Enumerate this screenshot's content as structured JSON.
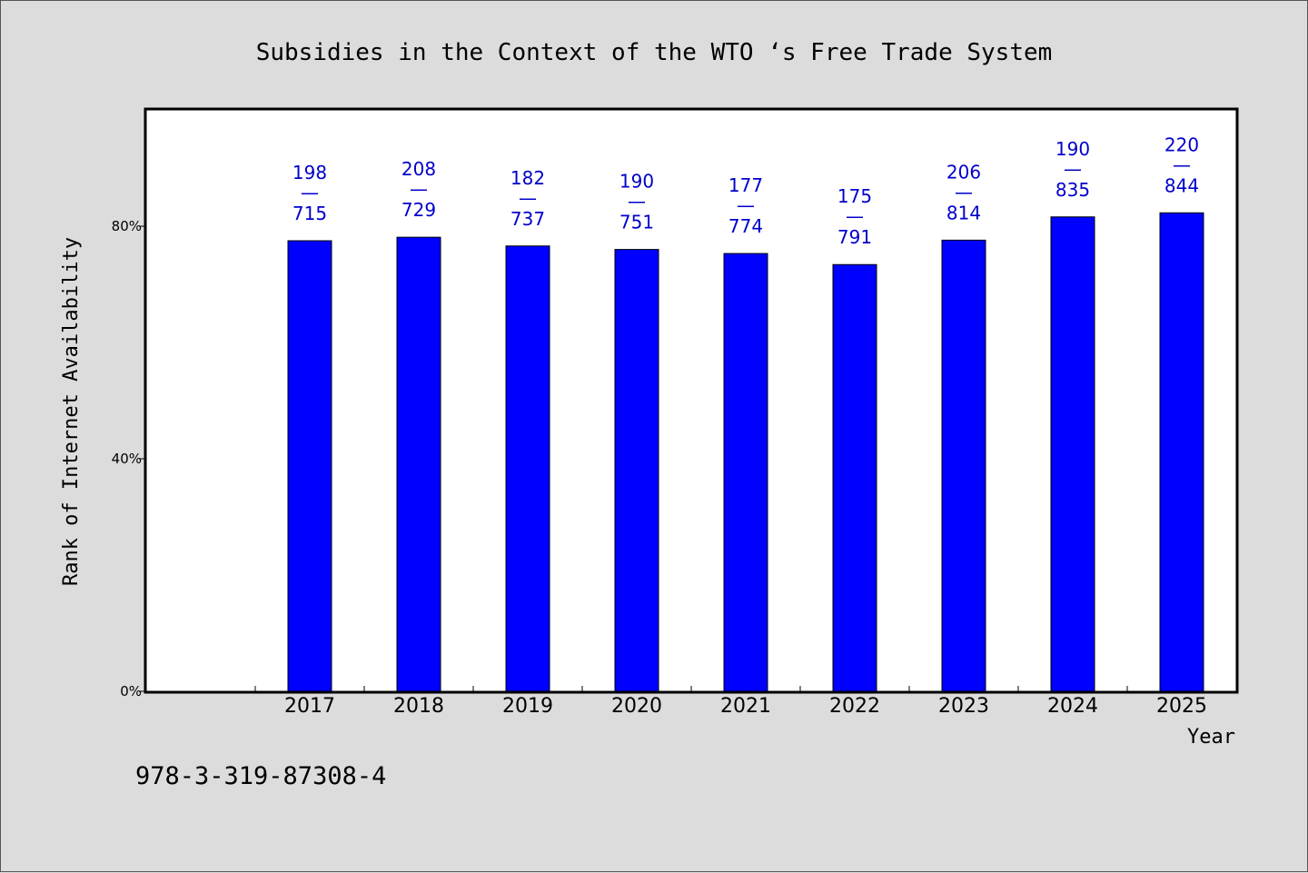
{
  "chart_data": {
    "type": "bar",
    "title": "Subsidies in the Context of the WTO ‘s Free Trade System",
    "xlabel": "Year",
    "ylabel": "Rank of Internet Availability",
    "categories": [
      "2017",
      "2018",
      "2019",
      "2020",
      "2021",
      "2022",
      "2023",
      "2024",
      "2025"
    ],
    "series": [
      {
        "values": [
          77.5,
          78.1,
          76.6,
          76.0,
          75.3,
          73.4,
          77.6,
          81.6,
          82.3
        ]
      }
    ],
    "data_labels": [
      {
        "top": "198",
        "sep": "—",
        "bottom": "715"
      },
      {
        "top": "208",
        "sep": "—",
        "bottom": "729"
      },
      {
        "top": "182",
        "sep": "—",
        "bottom": "737"
      },
      {
        "top": "190",
        "sep": "—",
        "bottom": "751"
      },
      {
        "top": "177",
        "sep": "—",
        "bottom": "774"
      },
      {
        "top": "175",
        "sep": "—",
        "bottom": "791"
      },
      {
        "top": "206",
        "sep": "—",
        "bottom": "814"
      },
      {
        "top": "190",
        "sep": "—",
        "bottom": "835"
      },
      {
        "top": "220",
        "sep": "—",
        "bottom": "844"
      }
    ],
    "yticks": [
      {
        "value": 0,
        "label": "0%"
      },
      {
        "value": 40,
        "label": "40%"
      },
      {
        "value": 80,
        "label": "80%"
      }
    ],
    "ylim": [
      0,
      100
    ],
    "grid": false,
    "legend": "none",
    "colors": {
      "bar": "#0000ff",
      "label": "#0000cc",
      "plot_bg": "#ffffff",
      "page_bg": "#dcdcdc"
    }
  },
  "footer": {
    "isbn": "978-3-319-87308-4"
  }
}
